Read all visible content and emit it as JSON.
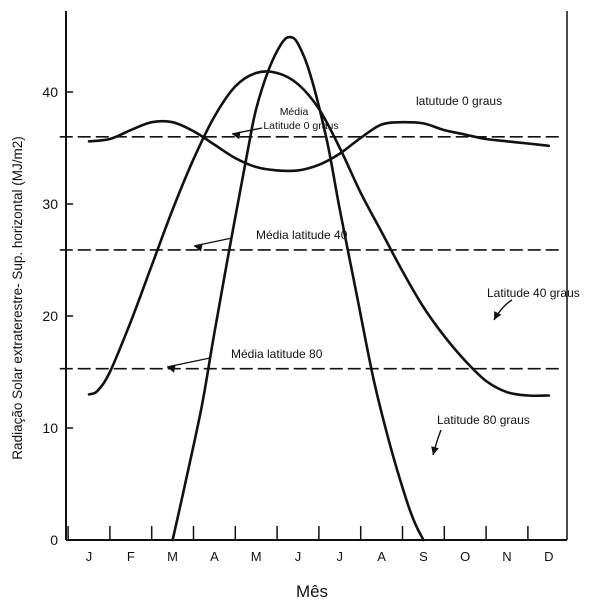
{
  "chart_data": {
    "type": "line",
    "title": "",
    "xlabel": "Mês",
    "ylabel": "Radiação Solar extraterestre- Sup. horizontal (MJ/m2)",
    "ylim": [
      0,
      47
    ],
    "yticks": [
      0,
      10,
      20,
      30,
      40
    ],
    "categories": [
      "J",
      "F",
      "M",
      "A",
      "M",
      "J",
      "J",
      "A",
      "S",
      "O",
      "N",
      "D"
    ],
    "grid": false,
    "series": [
      {
        "name": "latutude 0 graus",
        "style": "solid",
        "x": [
          0.0,
          0.5,
          1.0,
          1.5,
          2.0,
          2.5,
          3.0,
          3.5,
          4.0,
          4.5,
          5.0,
          5.5,
          6.0,
          6.5,
          7.0,
          7.5,
          8.0,
          8.5,
          9.0,
          9.5,
          10.0,
          10.5,
          11.0
        ],
        "y": [
          35.6,
          35.8,
          36.6,
          37.3,
          37.3,
          36.5,
          35.3,
          34.1,
          33.3,
          33.0,
          33.0,
          33.5,
          34.5,
          35.9,
          37.1,
          37.3,
          37.2,
          36.6,
          36.2,
          35.8,
          35.6,
          35.4,
          35.2
        ]
      },
      {
        "name": "Latitude 40 graus",
        "style": "solid",
        "x": [
          0.0,
          0.2,
          0.5,
          1.0,
          1.5,
          2.0,
          2.5,
          3.0,
          3.5,
          4.0,
          4.5,
          5.0,
          5.5,
          6.0,
          6.5,
          7.0,
          7.5,
          8.0,
          8.5,
          9.0,
          9.5,
          10.0,
          10.5,
          11.0
        ],
        "y": [
          13.0,
          13.3,
          15.0,
          19.5,
          24.5,
          29.5,
          34.0,
          37.8,
          40.5,
          41.7,
          41.7,
          40.7,
          38.5,
          35.0,
          31.0,
          27.5,
          24.0,
          20.8,
          18.2,
          16.0,
          14.2,
          13.2,
          12.9,
          12.9
        ]
      },
      {
        "name": "Latitude 80 graus",
        "style": "solid",
        "x": [
          2.0,
          2.3,
          2.7,
          3.0,
          3.4,
          3.8,
          4.0,
          4.3,
          4.6,
          4.8,
          5.0,
          5.3,
          5.7,
          6.0,
          6.4,
          6.8,
          7.2,
          7.6,
          7.8,
          8.0
        ],
        "y": [
          0.0,
          5.0,
          12.0,
          18.5,
          26.8,
          34.8,
          38.5,
          42.0,
          44.3,
          44.9,
          44.3,
          41.5,
          35.5,
          29.5,
          22.0,
          14.5,
          8.5,
          3.5,
          1.5,
          0.0
        ]
      },
      {
        "name": "Média Latitude 0 graus",
        "style": "dashed",
        "x": [
          -0.7,
          11.3
        ],
        "y": [
          36.0,
          36.0
        ]
      },
      {
        "name": "Média latitude 40",
        "style": "dashed",
        "x": [
          -0.7,
          11.3
        ],
        "y": [
          25.9,
          25.9
        ]
      },
      {
        "name": "Média latitude 80",
        "style": "dashed",
        "x": [
          -0.7,
          11.3
        ],
        "y": [
          15.3,
          15.3
        ]
      }
    ],
    "annotations": [
      {
        "name": "lbl-media-lat0-line1",
        "text": "Média"
      },
      {
        "name": "lbl-media-lat0-line2",
        "text": "Latitude 0 graus"
      },
      {
        "name": "lbl-lat0",
        "text": "latutude 0 graus"
      },
      {
        "name": "lbl-media-lat40",
        "text": "Média latitude 40"
      },
      {
        "name": "lbl-lat40",
        "text": "Latitude 40 graus"
      },
      {
        "name": "lbl-media-lat80",
        "text": "Média latitude 80"
      },
      {
        "name": "lbl-lat80",
        "text": "Latitude 80 graus"
      }
    ]
  }
}
